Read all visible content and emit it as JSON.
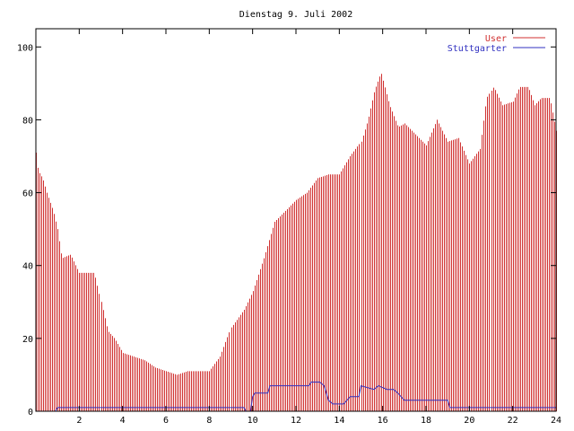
{
  "chart_data": {
    "type": "bar",
    "title": "Dienstag 9. Juli 2002",
    "xlabel": "",
    "ylabel": "",
    "xlim": [
      0,
      24
    ],
    "ylim": [
      0,
      105
    ],
    "x_ticks": [
      2,
      4,
      6,
      8,
      10,
      12,
      14,
      16,
      18,
      20,
      22,
      24
    ],
    "y_ticks": [
      0,
      20,
      40,
      60,
      80,
      100
    ],
    "grid": false,
    "legend_position": "top-right",
    "series": [
      {
        "name": "User",
        "style": "impulses",
        "color": "#d03030",
        "profile": [
          [
            0.0,
            71
          ],
          [
            0.1,
            66
          ],
          [
            0.3,
            64
          ],
          [
            0.5,
            60
          ],
          [
            0.8,
            55
          ],
          [
            1.0,
            50
          ],
          [
            1.2,
            42
          ],
          [
            1.6,
            43
          ],
          [
            2.0,
            38
          ],
          [
            2.7,
            38
          ],
          [
            3.0,
            30
          ],
          [
            3.3,
            22
          ],
          [
            3.6,
            20
          ],
          [
            4.0,
            16
          ],
          [
            4.5,
            15
          ],
          [
            5.0,
            14
          ],
          [
            5.5,
            12
          ],
          [
            6.0,
            11
          ],
          [
            6.5,
            10
          ],
          [
            7.0,
            11
          ],
          [
            7.5,
            11
          ],
          [
            8.0,
            11
          ],
          [
            8.5,
            15
          ],
          [
            9.0,
            23
          ],
          [
            9.6,
            28
          ],
          [
            10.0,
            33
          ],
          [
            10.5,
            42
          ],
          [
            11.0,
            52
          ],
          [
            11.5,
            55
          ],
          [
            12.0,
            58
          ],
          [
            12.5,
            60
          ],
          [
            13.0,
            64
          ],
          [
            13.5,
            65
          ],
          [
            14.0,
            65
          ],
          [
            14.5,
            70
          ],
          [
            15.0,
            74
          ],
          [
            15.3,
            80
          ],
          [
            15.6,
            88
          ],
          [
            15.9,
            93
          ],
          [
            16.3,
            84
          ],
          [
            16.7,
            78
          ],
          [
            17.0,
            79
          ],
          [
            17.5,
            76
          ],
          [
            18.0,
            73
          ],
          [
            18.5,
            80
          ],
          [
            19.0,
            74
          ],
          [
            19.5,
            75
          ],
          [
            20.0,
            68
          ],
          [
            20.5,
            72
          ],
          [
            20.8,
            86
          ],
          [
            21.1,
            89
          ],
          [
            21.5,
            84
          ],
          [
            22.0,
            85
          ],
          [
            22.3,
            89
          ],
          [
            22.7,
            89
          ],
          [
            23.0,
            84
          ],
          [
            23.3,
            86
          ],
          [
            23.7,
            86
          ],
          [
            24.0,
            77
          ]
        ]
      },
      {
        "name": "Stuttgarter",
        "style": "line",
        "color": "#3030c0",
        "points": [
          [
            0.0,
            0
          ],
          [
            0.9,
            0
          ],
          [
            1.0,
            1
          ],
          [
            9.6,
            1
          ],
          [
            9.7,
            0
          ],
          [
            9.9,
            0
          ],
          [
            10.0,
            4
          ],
          [
            10.1,
            5
          ],
          [
            10.7,
            5
          ],
          [
            10.8,
            7
          ],
          [
            12.6,
            7
          ],
          [
            12.7,
            8
          ],
          [
            13.1,
            8
          ],
          [
            13.3,
            7
          ],
          [
            13.5,
            3
          ],
          [
            13.7,
            2
          ],
          [
            14.2,
            2
          ],
          [
            14.5,
            4
          ],
          [
            14.9,
            4
          ],
          [
            15.0,
            7
          ],
          [
            15.6,
            6
          ],
          [
            15.8,
            7
          ],
          [
            16.2,
            6
          ],
          [
            16.5,
            6
          ],
          [
            16.7,
            5
          ],
          [
            17.0,
            3
          ],
          [
            19.0,
            3
          ],
          [
            19.1,
            1
          ],
          [
            24.0,
            1
          ]
        ]
      }
    ]
  }
}
